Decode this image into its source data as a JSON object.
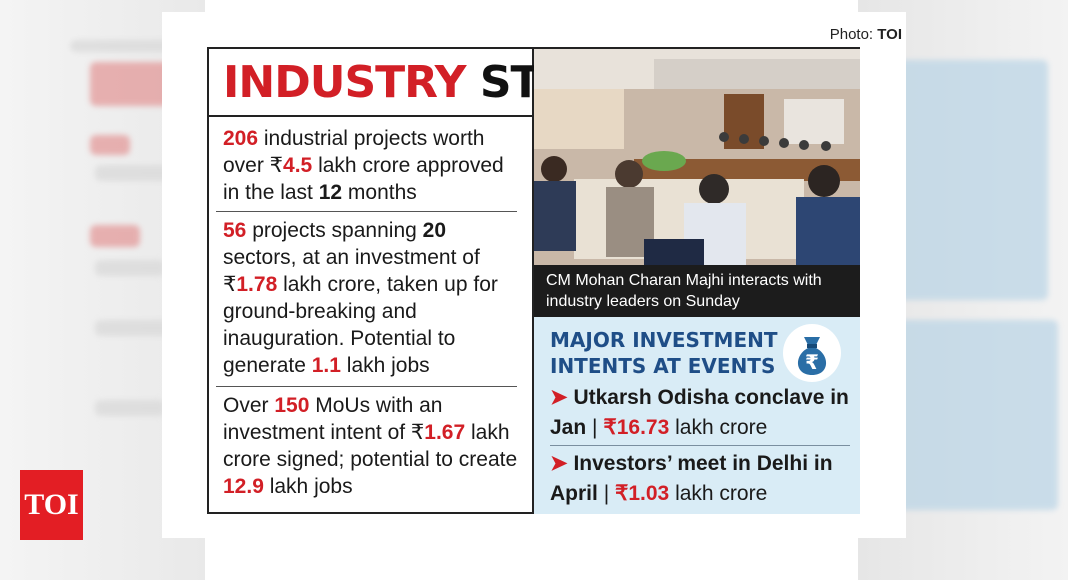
{
  "photo_credit": {
    "prefix": "Photo:",
    "source": "TOI"
  },
  "title": {
    "part1": "INDUSTRY",
    "part2": "STORY"
  },
  "facts": [
    {
      "parts": [
        [
          "206",
          "red"
        ],
        [
          " industrial projects worth over ₹",
          ""
        ],
        [
          "4.5",
          "red"
        ],
        [
          " lakh crore approved in the last ",
          ""
        ],
        [
          "12",
          "bold"
        ],
        [
          " months",
          ""
        ]
      ]
    },
    {
      "parts": [
        [
          "56",
          "red"
        ],
        [
          " projects spanning ",
          ""
        ],
        [
          "20",
          "bold"
        ],
        [
          " sectors, at an investment of ₹",
          ""
        ],
        [
          "1.78",
          "red"
        ],
        [
          " lakh crore, taken up for ground-breaking and inauguration. Potential to generate ",
          ""
        ],
        [
          "1.1",
          "red"
        ],
        [
          " lakh jobs",
          ""
        ]
      ]
    },
    {
      "parts": [
        [
          "Over ",
          ""
        ],
        [
          "150",
          "red"
        ],
        [
          " MoUs with an investment intent of ₹",
          ""
        ],
        [
          "1.67",
          "red"
        ],
        [
          " lakh crore signed; potential to create ",
          ""
        ],
        [
          "12.9",
          "red"
        ],
        [
          " lakh jobs",
          ""
        ]
      ]
    }
  ],
  "caption": "CM Mohan Charan Majhi interacts with industry leaders on Sunday",
  "investment": {
    "title_line1": "MAJOR INVESTMENT",
    "title_line2": "INTENTS AT EVENTS",
    "icon": "rupee-money-bag-icon",
    "events": [
      {
        "name": "Utkarsh Odisha conclave in Jan",
        "value": "₹16.73",
        "unit": "lakh crore"
      },
      {
        "name": "Investors’ meet in Delhi in April",
        "value": "₹1.03",
        "unit": "lakh crore"
      }
    ]
  },
  "logo": "TOI",
  "colors": {
    "accent_red": "#d21f26",
    "navy": "#1f4e87",
    "panel_blue": "#d9ecf6"
  }
}
